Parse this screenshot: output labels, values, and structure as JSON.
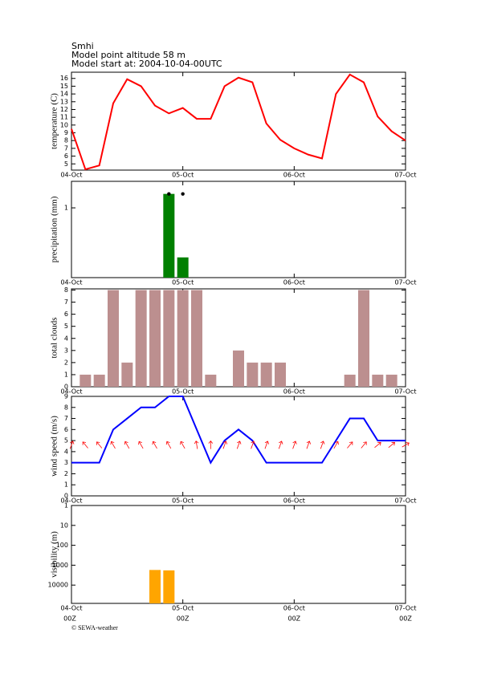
{
  "header": {
    "source": "Smhi",
    "altitude": "Model point altitude  58 m",
    "start": "Model start at: 2004-10-04-00UTC"
  },
  "footer": "© SEWA-weather",
  "chart_data": [
    {
      "type": "line",
      "ylabel": "temperature (C)",
      "xlim": [
        0,
        72
      ],
      "xticks": [
        {
          "value": 0,
          "label": "04-Oct"
        },
        {
          "value": 24,
          "label": "05-Oct"
        },
        {
          "value": 48,
          "label": "06-Oct"
        },
        {
          "value": 72,
          "label": "07-Oct"
        }
      ],
      "ylim": [
        4.2,
        16.8
      ],
      "yticks": [
        5,
        6,
        7,
        8,
        9,
        10,
        11,
        12,
        13,
        14,
        15,
        16
      ],
      "x": [
        0,
        3,
        6,
        9,
        12,
        15,
        18,
        21,
        24,
        27,
        30,
        33,
        36,
        39,
        42,
        45,
        48,
        51,
        54,
        57,
        60,
        63,
        66,
        69,
        72
      ],
      "series": [
        {
          "color": "#ff0000",
          "values": [
            9.5,
            4.3,
            4.8,
            12.8,
            15.9,
            15,
            12.5,
            11.5,
            12.2,
            10.8,
            10.8,
            15,
            16.1,
            15.5,
            10.2,
            8.1,
            7,
            6.2,
            5.7,
            14,
            16.5,
            15.5,
            11.1,
            9.2,
            8
          ]
        }
      ]
    },
    {
      "type": "bar",
      "ylabel": "precipitation (mm)",
      "xlim": [
        0,
        72
      ],
      "xticks": [
        {
          "value": 0,
          "label": "04-Oct"
        },
        {
          "value": 24,
          "label": "05-Oct"
        },
        {
          "value": 48,
          "label": "06-Oct"
        },
        {
          "value": 72,
          "label": "07-Oct"
        }
      ],
      "ylim": [
        0,
        1.38
      ],
      "yticks": [
        1
      ],
      "x": [
        21,
        24
      ],
      "series": [
        {
          "color": "#008000",
          "values": [
            1.2,
            0.29
          ]
        }
      ],
      "markers": {
        "x": [
          21,
          24
        ],
        "values": [
          1.2,
          1.2
        ]
      }
    },
    {
      "type": "bar",
      "ylabel": "total clouds",
      "xlim": [
        0,
        72
      ],
      "xticks": [
        {
          "value": 0,
          "label": "04-Oct"
        },
        {
          "value": 24,
          "label": "05-Oct"
        },
        {
          "value": 48,
          "label": "06-Oct"
        },
        {
          "value": 72,
          "label": "07-Oct"
        }
      ],
      "ylim": [
        0,
        8.1
      ],
      "yticks": [
        0,
        1,
        2,
        3,
        4,
        5,
        6,
        7,
        8
      ],
      "x": [
        3,
        6,
        9,
        12,
        15,
        18,
        21,
        24,
        27,
        30,
        33,
        36,
        39,
        42,
        45,
        48,
        51,
        54,
        57,
        60,
        63,
        66,
        69
      ],
      "series": [
        {
          "color": "#bc8f8f",
          "values": [
            1,
            1,
            8,
            2,
            8,
            8,
            8,
            8,
            8,
            1,
            0,
            3,
            2,
            2,
            2,
            0,
            0,
            0,
            0,
            1,
            8,
            1,
            1
          ]
        }
      ]
    },
    {
      "type": "line",
      "ylabel": "wind speed (m/s)",
      "xlim": [
        0,
        72
      ],
      "xticks": [
        {
          "value": 0,
          "label": "04-Oct"
        },
        {
          "value": 24,
          "label": "05-Oct"
        },
        {
          "value": 48,
          "label": "06-Oct"
        },
        {
          "value": 72,
          "label": "07-Oct"
        }
      ],
      "ylim": [
        0,
        9
      ],
      "yticks": [
        0,
        1,
        2,
        3,
        4,
        5,
        6,
        7,
        8,
        9
      ],
      "x": [
        0,
        3,
        6,
        9,
        12,
        15,
        18,
        21,
        24,
        27,
        30,
        33,
        36,
        39,
        42,
        45,
        48,
        51,
        54,
        57,
        60,
        63,
        66,
        69,
        72
      ],
      "series": [
        {
          "color": "#0000ff",
          "values": [
            3,
            3,
            3,
            6,
            7,
            8,
            8,
            9,
            9,
            6,
            3,
            5,
            6,
            5,
            3,
            3,
            3,
            3,
            3,
            5,
            7,
            7,
            5,
            5,
            5
          ]
        }
      ],
      "arrows": {
        "color": "#ff0000",
        "angles": [
          20,
          -40,
          -40,
          -30,
          -30,
          -30,
          -30,
          -30,
          -30,
          -10,
          0,
          20,
          20,
          20,
          20,
          20,
          20,
          20,
          20,
          30,
          40,
          40,
          50,
          50,
          60
        ]
      }
    },
    {
      "type": "bar",
      "ylabel": "visibility (m)",
      "xlim": [
        0,
        72
      ],
      "xticks": [
        {
          "value": 0,
          "label": "04-Oct"
        },
        {
          "value": 24,
          "label": "05-Oct"
        },
        {
          "value": 48,
          "label": "06-Oct"
        },
        {
          "value": 72,
          "label": "07-Oct"
        }
      ],
      "x_sublabels": [
        "00Z",
        "00Z",
        "00Z",
        "00Z"
      ],
      "log_scale": true,
      "y_inverted": true,
      "ylim": [
        1,
        83000
      ],
      "yticks": [
        1,
        10,
        100,
        1000,
        10000
      ],
      "x": [
        18,
        21
      ],
      "series": [
        {
          "color": "#ffa500",
          "values": [
            1738,
            1820
          ]
        }
      ]
    }
  ]
}
